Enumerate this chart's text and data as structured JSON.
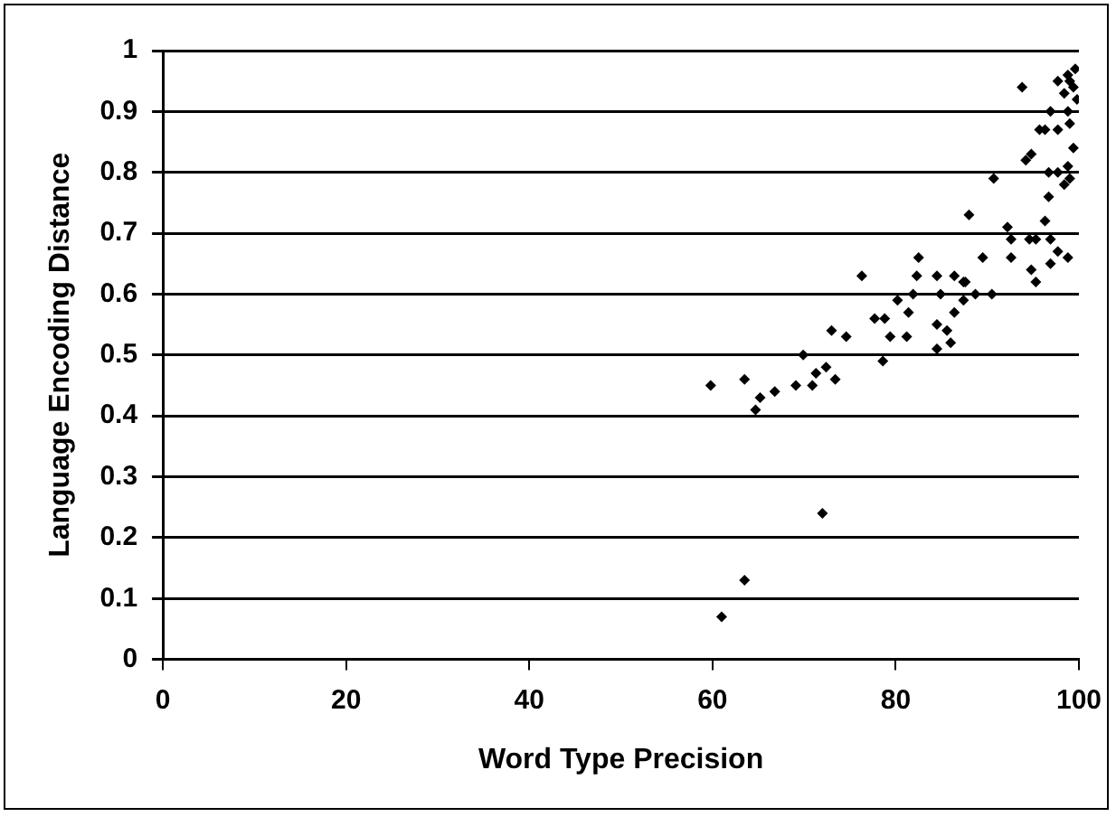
{
  "chart_data": {
    "type": "scatter",
    "xlabel": "Word Type Precision",
    "ylabel": "Language Encoding Distance",
    "xlim": [
      0,
      100
    ],
    "xticks": [
      0,
      20,
      40,
      60,
      80,
      100
    ],
    "ylim": [
      0,
      1
    ],
    "yticks": [
      0,
      0.1,
      0.2,
      0.3,
      0.4,
      0.5,
      0.6,
      0.7,
      0.8,
      0.9,
      1
    ],
    "grid": "y",
    "legend": false,
    "marker": "diamond",
    "series": [
      {
        "color": "#000000",
        "x": [
          61.0,
          63.5,
          72.0,
          59.8,
          63.5,
          65.2,
          66.8,
          64.7,
          69.1,
          69.9,
          71.3,
          70.9,
          72.4,
          73.4,
          73.0,
          74.6,
          76.3,
          78.6,
          77.7,
          78.8,
          79.4,
          81.2,
          80.2,
          81.9,
          82.3,
          82.5,
          81.4,
          84.5,
          86.4,
          84.9,
          86.4,
          84.5,
          87.4,
          86.0,
          84.5,
          87.6,
          85.6,
          88.7,
          99.0,
          99.6,
          98.8,
          93.8,
          97.7,
          99.4,
          98.4,
          99.8,
          96.9,
          98.8,
          96.3,
          97.7,
          95.7,
          99.0,
          99.4,
          94.8,
          94.2,
          96.7,
          98.8,
          97.7,
          99.0,
          98.4,
          90.7,
          96.7,
          88.0,
          96.3,
          92.2,
          92.6,
          94.6,
          95.3,
          96.9,
          97.7,
          98.8,
          89.5,
          92.6,
          96.9,
          94.8,
          95.3,
          90.5,
          87.4
        ],
        "values": [
          0.07,
          0.13,
          0.24,
          0.45,
          0.46,
          0.43,
          0.44,
          0.41,
          0.45,
          0.5,
          0.47,
          0.45,
          0.48,
          0.46,
          0.54,
          0.53,
          0.63,
          0.49,
          0.56,
          0.56,
          0.53,
          0.53,
          0.59,
          0.6,
          0.63,
          0.66,
          0.57,
          0.63,
          0.63,
          0.6,
          0.57,
          0.55,
          0.59,
          0.52,
          0.51,
          0.62,
          0.54,
          0.6,
          0.95,
          0.97,
          0.96,
          0.94,
          0.95,
          0.94,
          0.93,
          0.92,
          0.9,
          0.9,
          0.87,
          0.87,
          0.87,
          0.88,
          0.84,
          0.83,
          0.82,
          0.8,
          0.81,
          0.8,
          0.79,
          0.78,
          0.79,
          0.76,
          0.73,
          0.72,
          0.71,
          0.69,
          0.69,
          0.69,
          0.69,
          0.67,
          0.66,
          0.66,
          0.66,
          0.65,
          0.64,
          0.62,
          0.6,
          0.62
        ]
      }
    ]
  }
}
